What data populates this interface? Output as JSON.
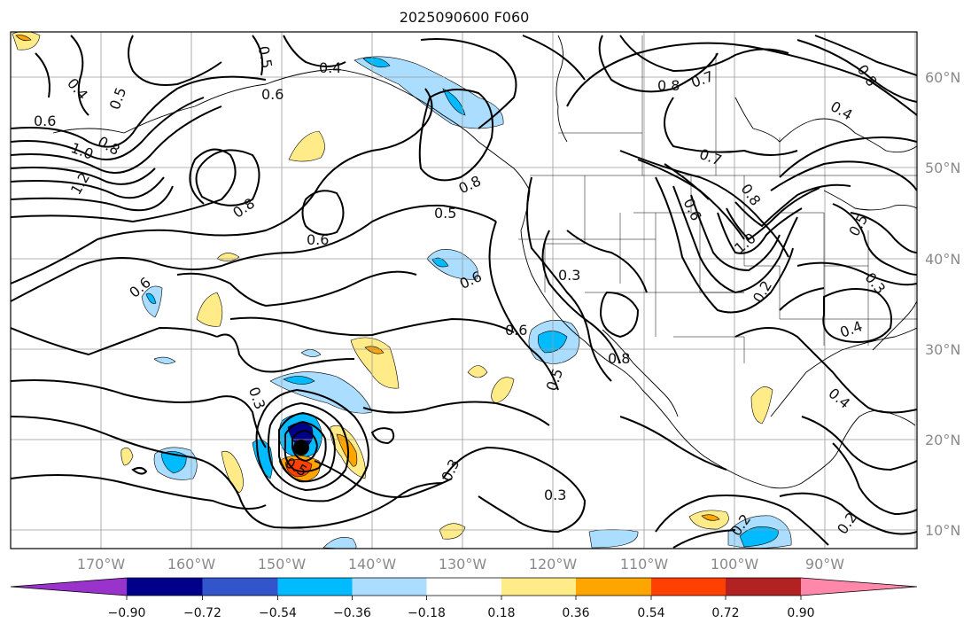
{
  "title": "2025090600 F060",
  "lon_labels": [
    "170°W",
    "160°W",
    "150°W",
    "140°W",
    "130°W",
    "120°W",
    "110°W",
    "100°W",
    "90°W"
  ],
  "lat_labels": [
    "60°N",
    "50°N",
    "40°N",
    "30°N",
    "20°N",
    "10°N"
  ],
  "colorbar": {
    "ticks": [
      "−0.90",
      "−0.72",
      "−0.54",
      "−0.36",
      "−0.18",
      "0.18",
      "0.36",
      "0.54",
      "0.72",
      "0.90"
    ],
    "colors": [
      "#9933cc",
      "#000088",
      "#3355cc",
      "#00bbff",
      "#aaddff",
      "#ffffff",
      "#ffeb88",
      "#ffa500",
      "#ff4000",
      "#b22222",
      "#ff88aa"
    ]
  },
  "contour_labels": {
    "l1": "0.4",
    "l2": "0.5",
    "l3": "0.6",
    "l4": "0.8",
    "l5": "1.0",
    "l6": "1.2",
    "l7": "0.5",
    "l8": "0.4",
    "l9": "0.6",
    "l10": "0.8",
    "l11": "0.6",
    "l12": "0.8",
    "l13": "0.5",
    "l14": "0.6",
    "l15": "0.6",
    "l16": "0.3",
    "l17": "0.6",
    "l18": "0.3",
    "l19": "0.3",
    "l20": "0.5",
    "l21": "0.8",
    "l22": "0.8",
    "l23": "0.7",
    "l24": "0.8",
    "l25": "0.4",
    "l26": "0.7",
    "l27": "0.8",
    "l28": "0.6",
    "l29": "1.0",
    "l30": "0.2",
    "l31": "0.5",
    "l32": "0.3",
    "l33": "0.4",
    "l34": "0.4",
    "l35": "0.2",
    "l36": "0.2",
    "l37": "0.3",
    "l38": "0.5"
  }
}
